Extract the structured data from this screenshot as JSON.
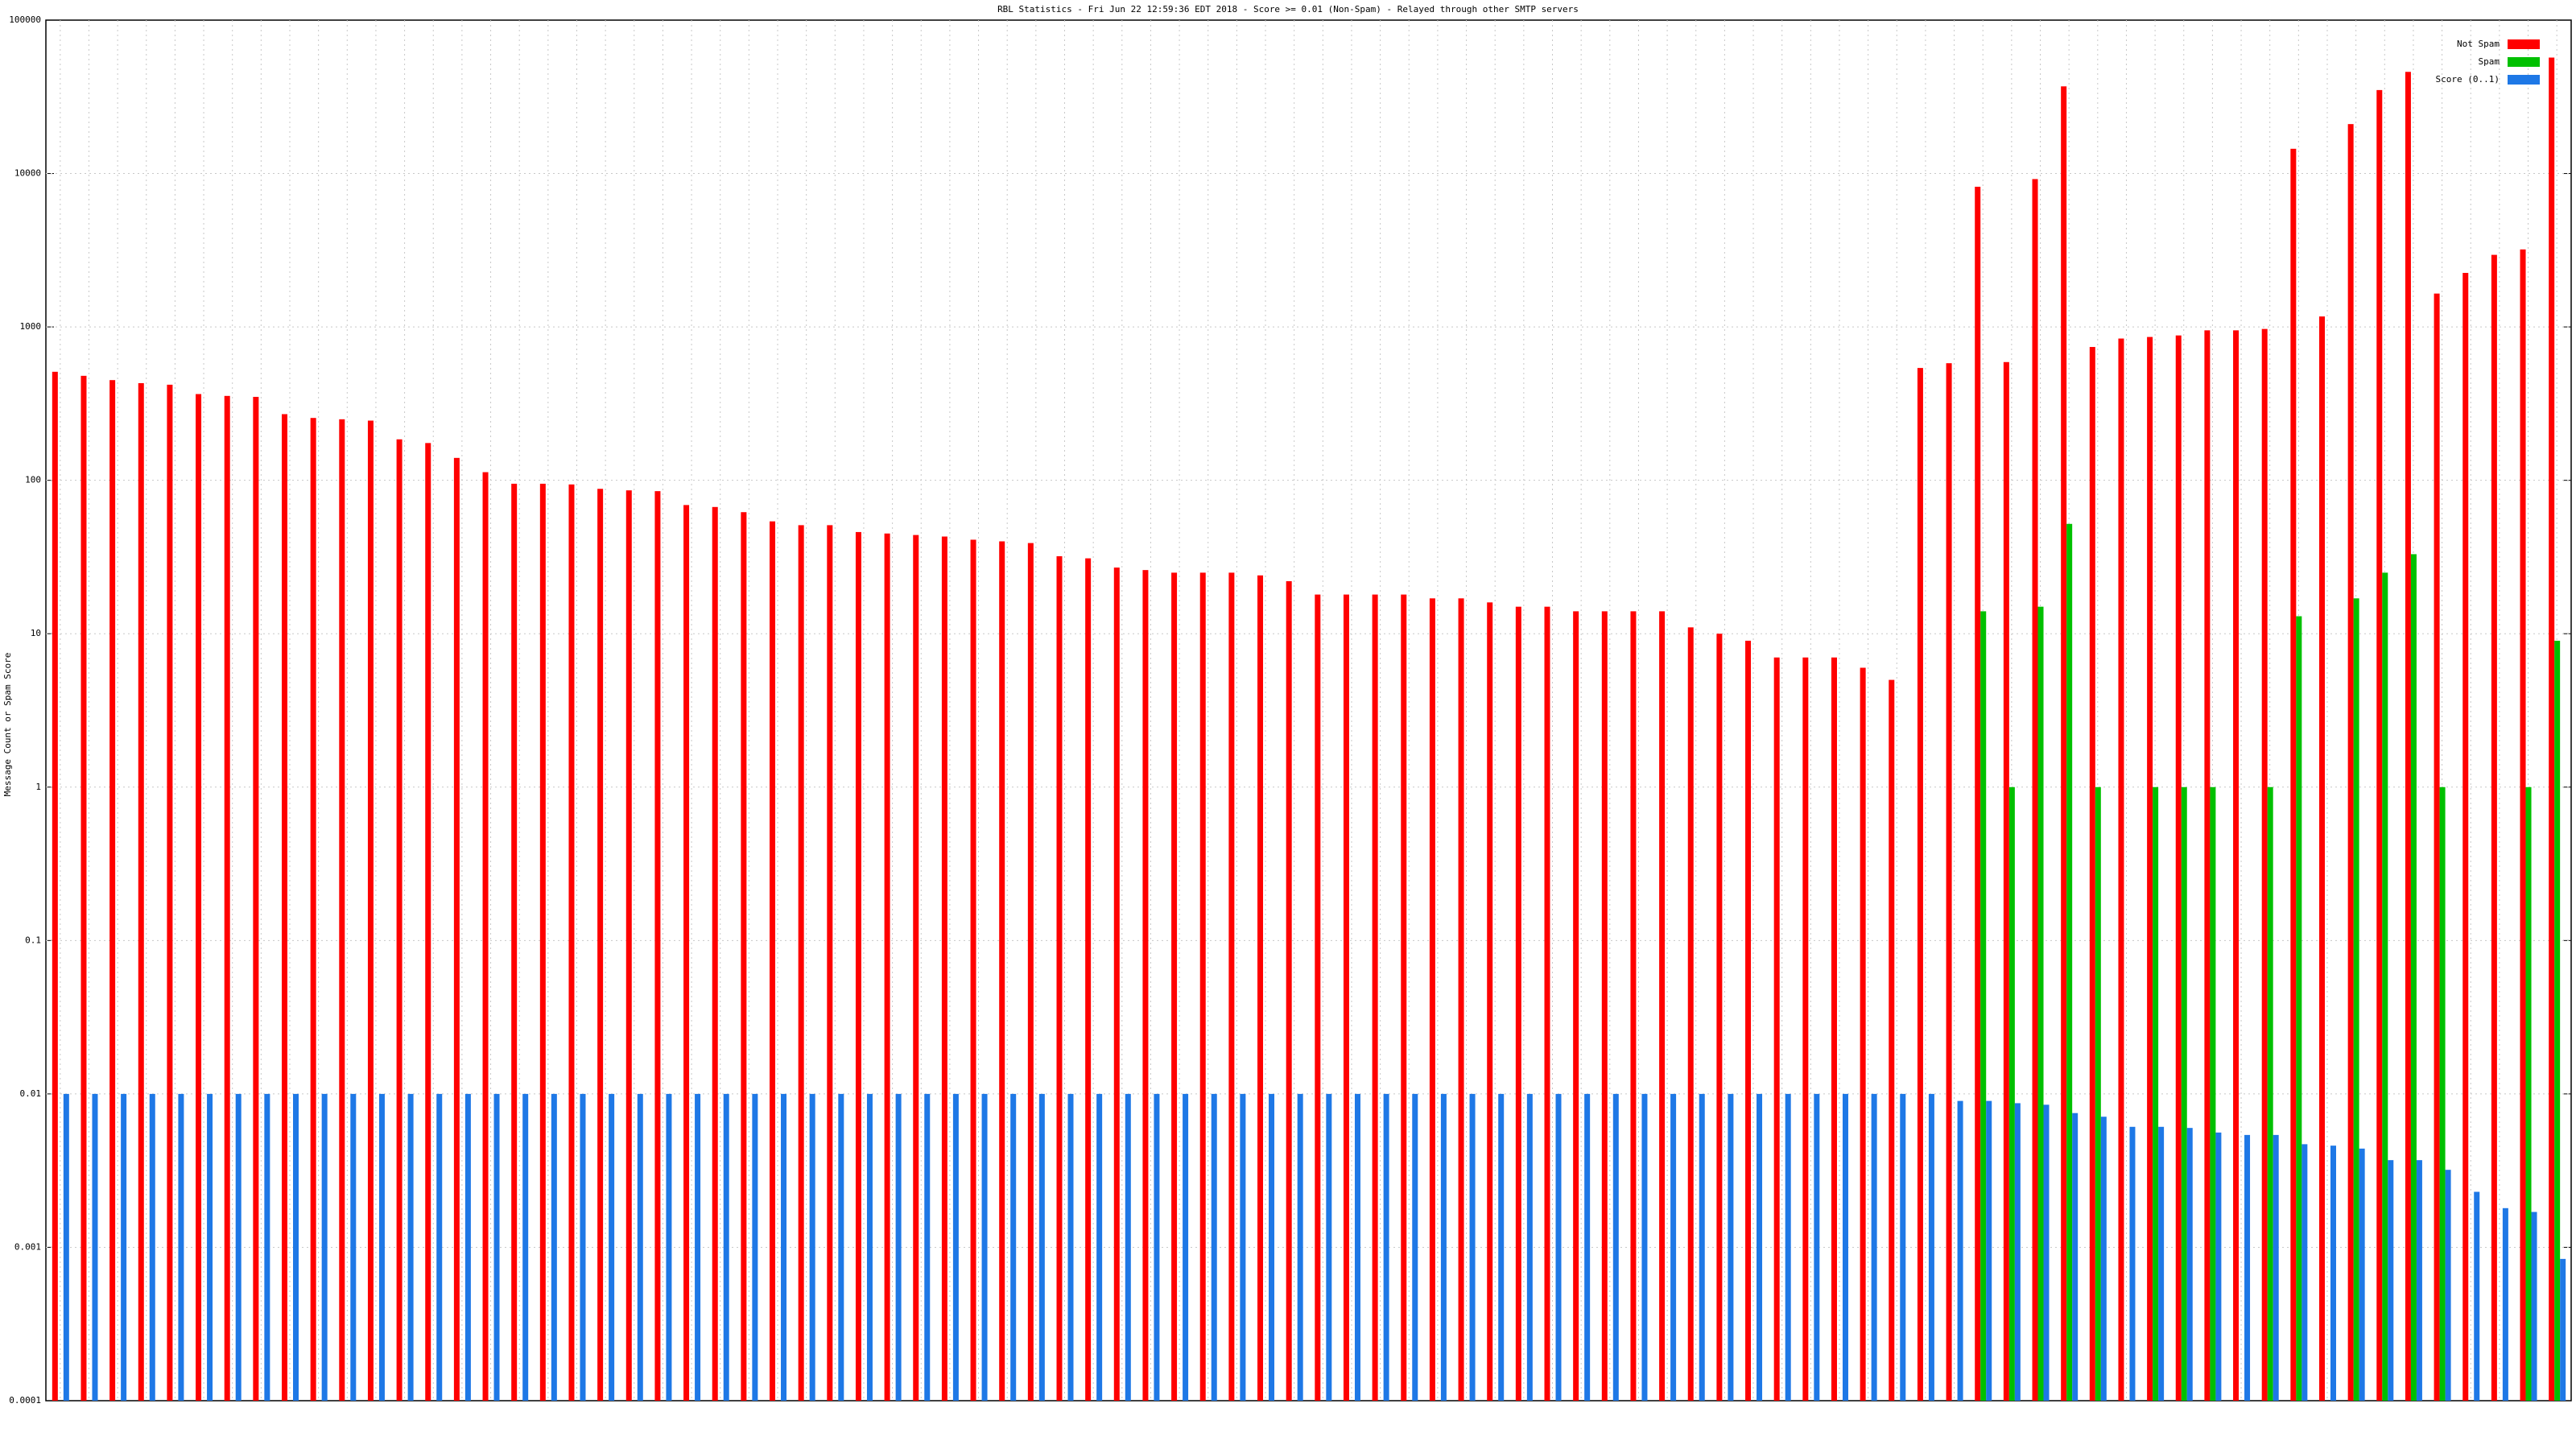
{
  "chart_data": {
    "type": "bar",
    "title": "RBL Statistics - Fri Jun 22 12:59:36 EDT 2018 - Score >= 0.01 (Non-Spam) - Relayed through other SMTP servers",
    "y_label": "Message Count or Spam Score",
    "log_scale": true,
    "grid": true,
    "legend_position": "top-right",
    "ylim": [
      0.0001,
      100000
    ],
    "yticks": [
      0.0001,
      0.001,
      0.01,
      0.1,
      1,
      10,
      100,
      1000,
      10000,
      100000
    ],
    "categories": [
      null,
      null,
      null,
      null,
      null,
      null,
      null,
      null,
      null,
      null,
      null,
      null,
      null,
      null,
      null,
      null,
      null,
      null,
      null,
      null,
      null,
      null,
      null,
      null,
      null,
      null,
      null,
      null,
      null,
      null,
      null,
      null,
      null,
      null,
      null,
      null,
      null,
      null,
      null,
      null,
      null,
      null,
      null,
      null,
      null,
      null,
      null,
      null,
      null,
      null,
      null,
      null,
      null,
      null,
      null,
      null,
      null,
      null,
      null,
      null,
      null,
      null,
      null,
      null,
      null,
      null,
      null,
      null,
      null,
      null,
      null,
      null,
      null,
      null,
      null,
      null,
      null,
      null,
      null,
      null,
      null,
      null,
      null,
      null,
      null,
      null,
      null,
      null
    ],
    "series": [
      {
        "name": "Not Spam",
        "color": "#ff0000",
        "values": [
          510,
          480,
          450,
          430,
          420,
          365,
          355,
          350,
          270,
          255,
          250,
          245,
          185,
          175,
          140,
          113,
          95,
          95,
          94,
          88,
          86,
          85,
          69,
          67,
          62,
          54,
          51,
          51,
          46,
          45,
          44,
          43,
          41,
          40,
          39,
          32,
          31,
          27,
          26,
          25,
          25,
          25,
          24,
          22,
          18,
          18,
          18,
          18,
          17,
          17,
          16,
          15,
          15,
          14,
          14,
          14,
          14,
          11,
          10,
          9,
          7,
          7,
          7,
          6,
          5,
          540,
          580,
          8200,
          590,
          9200,
          37000,
          740,
          840,
          860,
          880,
          950,
          950,
          970,
          14500,
          1170,
          21000,
          35000,
          46000,
          1650,
          2250,
          2950,
          3200,
          57000
        ]
      },
      {
        "name": "Spam",
        "color": "#00c000",
        "values": [
          null,
          null,
          null,
          null,
          null,
          null,
          null,
          null,
          null,
          null,
          null,
          null,
          null,
          null,
          null,
          null,
          null,
          null,
          null,
          null,
          null,
          null,
          null,
          null,
          null,
          null,
          null,
          null,
          null,
          null,
          null,
          null,
          null,
          null,
          null,
          null,
          null,
          null,
          null,
          null,
          null,
          null,
          null,
          null,
          null,
          null,
          null,
          null,
          null,
          null,
          null,
          null,
          null,
          null,
          null,
          null,
          null,
          null,
          null,
          null,
          null,
          null,
          null,
          null,
          null,
          null,
          null,
          14,
          1,
          15,
          52,
          1,
          null,
          1,
          1,
          1,
          null,
          1,
          13,
          null,
          17,
          25,
          33,
          1,
          null,
          null,
          1,
          9
        ]
      },
      {
        "name": "Score (0..1)",
        "color": "#1e78e6",
        "values": [
          0.01,
          0.01,
          0.01,
          0.01,
          0.01,
          0.01,
          0.01,
          0.01,
          0.01,
          0.01,
          0.01,
          0.01,
          0.01,
          0.01,
          0.01,
          0.01,
          0.01,
          0.01,
          0.01,
          0.01,
          0.01,
          0.01,
          0.01,
          0.01,
          0.01,
          0.01,
          0.01,
          0.01,
          0.01,
          0.01,
          0.01,
          0.01,
          0.01,
          0.01,
          0.01,
          0.01,
          0.01,
          0.01,
          0.01,
          0.01,
          0.01,
          0.01,
          0.01,
          0.01,
          0.01,
          0.01,
          0.01,
          0.01,
          0.01,
          0.01,
          0.01,
          0.01,
          0.01,
          0.01,
          0.01,
          0.01,
          0.01,
          0.01,
          0.01,
          0.01,
          0.01,
          0.01,
          0.01,
          0.01,
          0.01,
          0.01,
          0.009,
          0.009,
          0.0087,
          0.0085,
          0.0075,
          0.0071,
          0.0061,
          0.0061,
          0.006,
          0.0056,
          0.0054,
          0.0054,
          0.0047,
          0.0046,
          0.0044,
          0.0037,
          0.0037,
          0.0032,
          0.0023,
          0.0018,
          0.0017,
          0.00084
        ]
      }
    ]
  }
}
